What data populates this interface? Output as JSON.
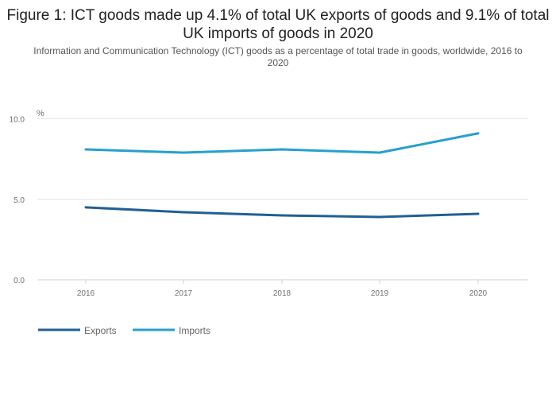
{
  "chart_data": {
    "type": "line",
    "title": "Figure 1: ICT goods made up 4.1% of total UK exports of goods and 9.1% of total UK imports of goods in 2020",
    "subtitle": "Information and Communication Technology (ICT) goods as a percentage of total trade in goods, worldwide, 2016 to 2020",
    "ylabel": "%",
    "xlabel": "",
    "ylim": [
      0,
      10
    ],
    "yticks": [
      "0.0",
      "5.0",
      "10.0"
    ],
    "categories": [
      "2016",
      "2017",
      "2018",
      "2019",
      "2020"
    ],
    "series": [
      {
        "name": "Exports",
        "color": "#206095",
        "values": [
          4.5,
          4.2,
          4.0,
          3.9,
          4.1
        ]
      },
      {
        "name": "Imports",
        "color": "#27a0cc",
        "values": [
          8.1,
          7.9,
          8.1,
          7.9,
          9.1
        ]
      }
    ],
    "grid": true,
    "legend": "bottom-left"
  }
}
